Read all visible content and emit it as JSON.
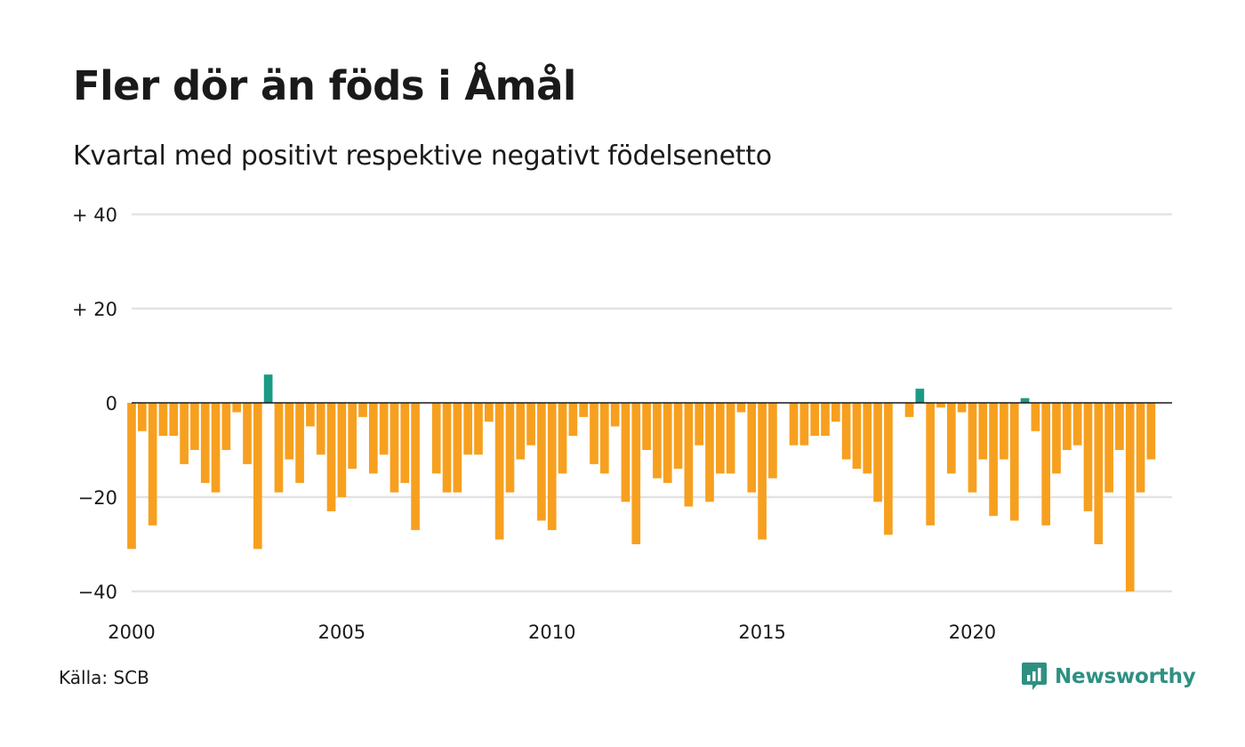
{
  "title": "Fler dör än föds i Åmål",
  "subtitle": "Kvartal med positivt respektive negativt födelsenetto",
  "source": "Källa: SCB",
  "brand": "Newsworthy",
  "colors": {
    "negative": "#f7a01f",
    "positive": "#1a9a84",
    "grid": "#e3e3e3",
    "brand": "#2f9082"
  },
  "chart_data": {
    "type": "bar",
    "title": "Fler dör än föds i Åmål",
    "subtitle": "Kvartal med positivt respektive negativt födelsenetto",
    "ylim": [
      -40,
      40
    ],
    "yticks": [
      40,
      20,
      0,
      -20,
      -40
    ],
    "ytick_labels": [
      "+ 40",
      "+ 20",
      "0",
      "−20",
      "−40"
    ],
    "xlim": [
      2000.0,
      2024.75
    ],
    "xticks": [
      2000,
      2005,
      2010,
      2015,
      2020
    ],
    "xtick_labels": [
      "2000",
      "2005",
      "2010",
      "2015",
      "2020"
    ],
    "grid": true,
    "start": "2000 Q1",
    "values": [
      -31,
      -6,
      -26,
      -7,
      -7,
      -13,
      -10,
      -17,
      -19,
      -10,
      -2,
      -13,
      -31,
      6,
      -19,
      -12,
      -17,
      -5,
      -11,
      -23,
      -20,
      -14,
      -3,
      -15,
      -11,
      -19,
      -17,
      -27,
      0,
      -15,
      -19,
      -19,
      -11,
      -11,
      -4,
      -29,
      -19,
      -12,
      -9,
      -25,
      -27,
      -15,
      -7,
      -3,
      -13,
      -15,
      -5,
      -21,
      -30,
      -10,
      -16,
      -17,
      -14,
      -22,
      -9,
      -21,
      -15,
      -15,
      -2,
      -19,
      -29,
      -16,
      0,
      -9,
      -9,
      -7,
      -7,
      -4,
      -12,
      -14,
      -15,
      -21,
      -28,
      0,
      -3,
      3,
      -26,
      -1,
      -15,
      -2,
      -19,
      -12,
      -24,
      -12,
      -25,
      1,
      -6,
      -26,
      -15,
      -10,
      -9,
      -23,
      -30,
      -19,
      -10,
      -40,
      -19,
      -12
    ]
  }
}
